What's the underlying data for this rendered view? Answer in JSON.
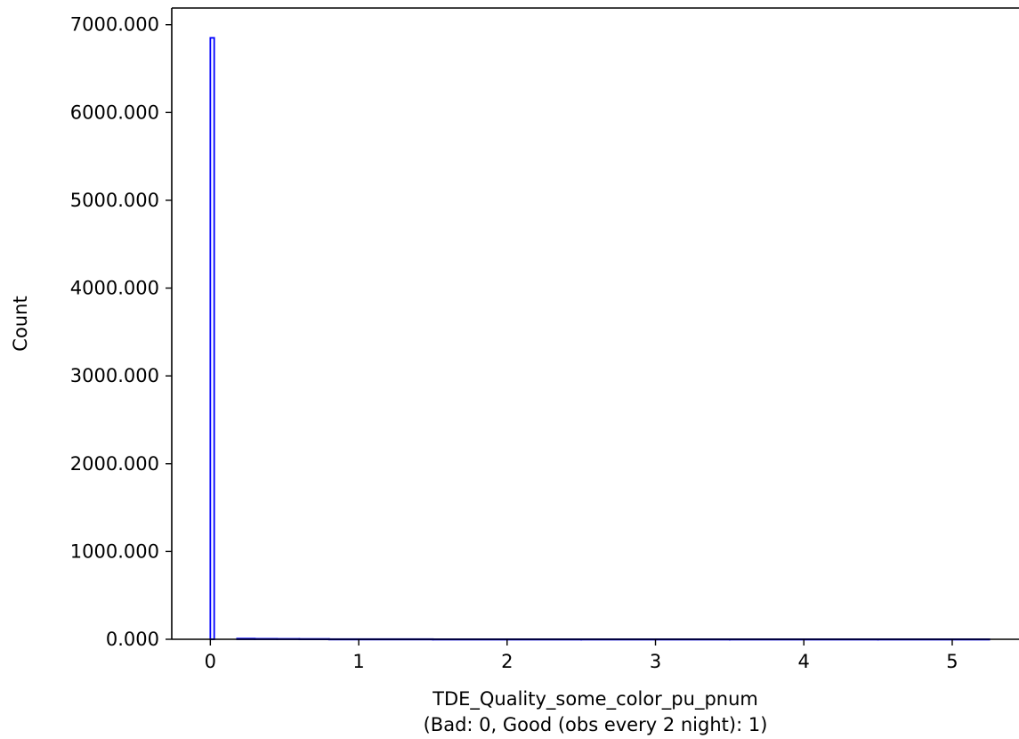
{
  "chart_data": {
    "type": "bar",
    "title": "",
    "xlabel": "TDE_Quality_some_color_pu_pnum",
    "xlabel_line2": "(Bad: 0, Good (obs every 2 night): 1)",
    "ylabel": "Count",
    "xlim": [
      -0.26,
      5.45
    ],
    "ylim": [
      0,
      7190
    ],
    "xticks": [
      {
        "value": 0,
        "label": "0"
      },
      {
        "value": 1,
        "label": "1"
      },
      {
        "value": 2,
        "label": "2"
      },
      {
        "value": 3,
        "label": "3"
      },
      {
        "value": 4,
        "label": "4"
      },
      {
        "value": 5,
        "label": "5"
      }
    ],
    "yticks": [
      {
        "value": 0,
        "label": "0.000"
      },
      {
        "value": 1000,
        "label": "1000.000"
      },
      {
        "value": 2000,
        "label": "2000.000"
      },
      {
        "value": 3000,
        "label": "3000.000"
      },
      {
        "value": 4000,
        "label": "4000.000"
      },
      {
        "value": 5000,
        "label": "5000.000"
      },
      {
        "value": 6000,
        "label": "6000.000"
      },
      {
        "value": 7000,
        "label": "7000.000"
      }
    ],
    "histtype": "step",
    "bars": [
      {
        "x0": 0.0,
        "x1": 0.026,
        "value": 6850
      },
      {
        "x0": 0.18,
        "x1": 0.3,
        "value": 8
      },
      {
        "x0": 0.3,
        "x1": 0.45,
        "value": 6
      },
      {
        "x0": 0.45,
        "x1": 0.6,
        "value": 5
      },
      {
        "x0": 0.6,
        "x1": 0.8,
        "value": 4
      },
      {
        "x0": 0.8,
        "x1": 1.5,
        "value": 2
      },
      {
        "x0": 1.5,
        "x1": 2.5,
        "value": 1
      },
      {
        "x0": 2.5,
        "x1": 3.5,
        "value": 1
      },
      {
        "x0": 3.5,
        "x1": 4.5,
        "value": 1
      },
      {
        "x0": 4.5,
        "x1": 5.25,
        "value": 1
      }
    ],
    "grid": false,
    "legend": "none",
    "bar_color": "#0000ff"
  }
}
